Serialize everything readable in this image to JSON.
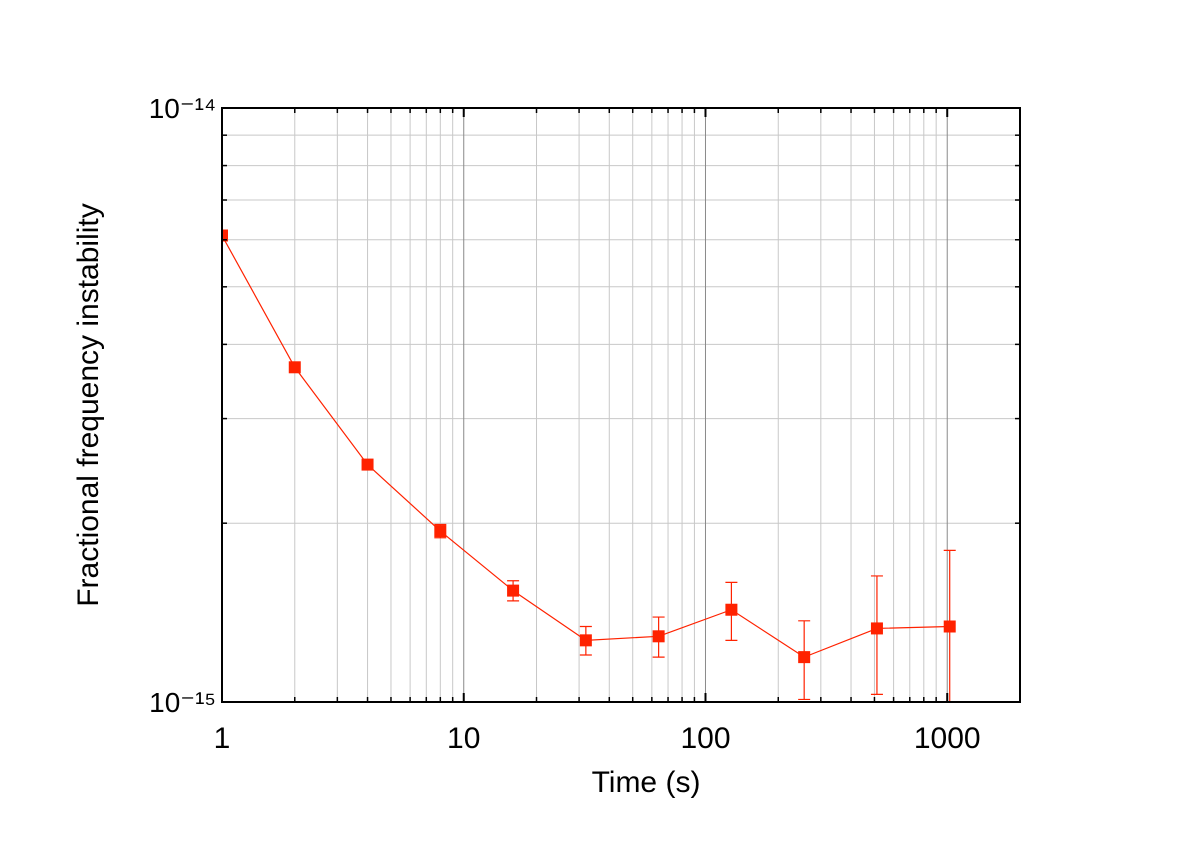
{
  "chart_data": {
    "type": "line",
    "x_label": "Time (s)",
    "y_label": "Fractional frequency instability",
    "x": [
      1,
      2,
      4,
      8,
      16,
      32,
      64,
      128,
      256,
      512,
      1024
    ],
    "values": [
      6.1e-15,
      3.66e-15,
      2.51e-15,
      1.94e-15,
      1.54e-15,
      1.27e-15,
      1.29e-15,
      1.43e-15,
      1.19e-15,
      1.33e-15,
      1.34e-15
    ],
    "errors": [
      0,
      0,
      0,
      5e-17,
      6e-17,
      7e-17,
      1e-16,
      1.6e-16,
      1.8e-16,
      3e-16,
      4.6e-16
    ],
    "color": "#ff2200",
    "xlim": [
      1,
      2000
    ],
    "ylim": [
      1e-15,
      1e-14
    ],
    "xticks": [
      1,
      10,
      100,
      1000
    ],
    "yticks": [
      {
        "value": 1e-15,
        "label": "10⁻¹⁵"
      },
      {
        "value": 1e-14,
        "label": "10⁻¹⁴"
      }
    ],
    "log_x": true,
    "log_y": true,
    "grid": true,
    "minor_grid": true
  }
}
